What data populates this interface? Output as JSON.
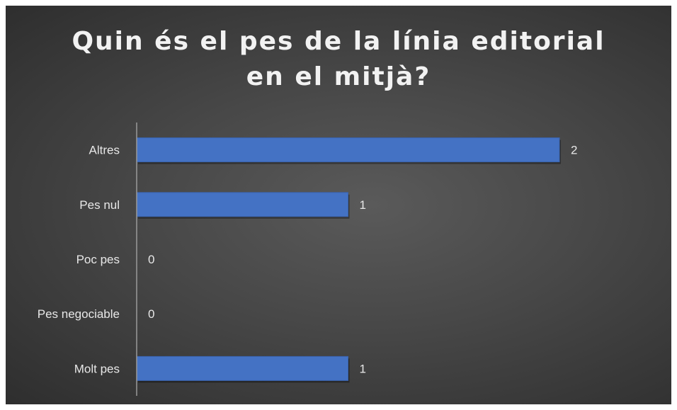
{
  "chart_data": {
    "type": "bar",
    "orientation": "horizontal",
    "title": "Quin és el pes de la línia editorial en el mitjà?",
    "categories": [
      "Altres",
      "Pes nul",
      "Poc pes",
      "Pes negociable",
      "Molt pes"
    ],
    "values": [
      2,
      1,
      0,
      0,
      1
    ],
    "data_labels": [
      "2",
      "1",
      "0",
      "0",
      "1"
    ],
    "xlim": [
      0,
      2
    ],
    "grid": false,
    "legend": "none",
    "colors": {
      "bar": "#4472c4",
      "bar_edge": "#3a63ad",
      "text": "#e8e8e8",
      "axis": "#9a9a9a",
      "background_center": "#5a5a5a",
      "background_edge": "#2e2e2e"
    }
  }
}
